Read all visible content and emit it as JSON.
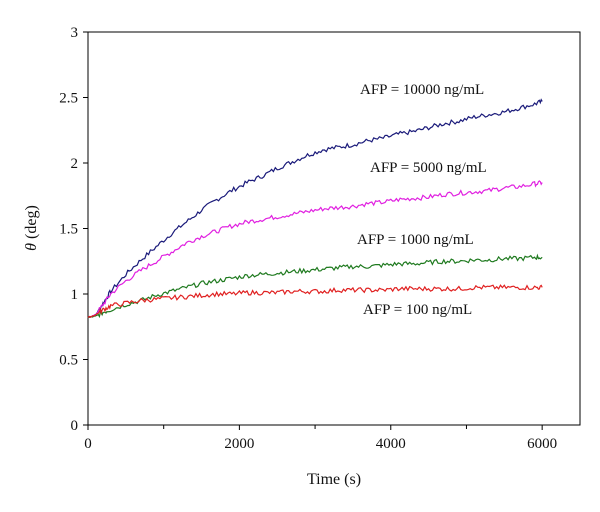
{
  "chart_data": {
    "type": "line",
    "xlabel": "Time (s)",
    "ylabel_symbol": "θ",
    "ylabel_unit": " (deg)",
    "xlim": [
      0,
      6500
    ],
    "ylim": [
      0,
      3
    ],
    "xticks": [
      0,
      2000,
      4000,
      6000
    ],
    "xtick_labels": [
      "0",
      "2000",
      "4000",
      "6000"
    ],
    "yticks": [
      0,
      0.5,
      1,
      1.5,
      2,
      2.5,
      3
    ],
    "ytick_labels": [
      "0",
      "0.5",
      "1",
      "1.5",
      "2",
      "2.5",
      "3"
    ],
    "grid": false,
    "legend": "none",
    "series": [
      {
        "name": "AFP = 10000 ng/mL",
        "color": "#1a1a7a",
        "x": [
          0,
          100,
          200,
          300,
          500,
          700,
          900,
          1100,
          1300,
          1500,
          1700,
          1900,
          2100,
          2300,
          2500,
          2700,
          2900,
          3100,
          3300,
          3500,
          3700,
          3900,
          4100,
          4300,
          4500,
          4700,
          4900,
          5100,
          5300,
          5500,
          5700,
          5900,
          6000
        ],
        "y": [
          0.82,
          0.84,
          0.93,
          1.02,
          1.15,
          1.26,
          1.36,
          1.46,
          1.55,
          1.64,
          1.72,
          1.79,
          1.85,
          1.9,
          1.96,
          2.01,
          2.06,
          2.1,
          2.12,
          2.14,
          2.17,
          2.19,
          2.22,
          2.24,
          2.27,
          2.3,
          2.32,
          2.35,
          2.37,
          2.39,
          2.42,
          2.45,
          2.47
        ]
      },
      {
        "name": "AFP = 5000 ng/mL",
        "color": "#e020e0",
        "x": [
          0,
          100,
          200,
          300,
          500,
          700,
          900,
          1100,
          1300,
          1500,
          1700,
          1900,
          2100,
          2300,
          2500,
          2700,
          2900,
          3100,
          3300,
          3500,
          3700,
          3900,
          4100,
          4300,
          4500,
          4700,
          4900,
          5100,
          5300,
          5500,
          5700,
          5900,
          6000
        ],
        "y": [
          0.82,
          0.84,
          0.92,
          1.0,
          1.1,
          1.18,
          1.25,
          1.32,
          1.39,
          1.44,
          1.48,
          1.52,
          1.55,
          1.57,
          1.59,
          1.61,
          1.63,
          1.65,
          1.66,
          1.67,
          1.69,
          1.7,
          1.72,
          1.73,
          1.74,
          1.76,
          1.77,
          1.78,
          1.79,
          1.81,
          1.82,
          1.84,
          1.85
        ]
      },
      {
        "name": "AFP = 1000 ng/mL",
        "color": "#1f7a1f",
        "x": [
          0,
          100,
          200,
          300,
          500,
          700,
          900,
          1100,
          1300,
          1500,
          1700,
          1900,
          2100,
          2300,
          2500,
          2700,
          2900,
          3100,
          3300,
          3500,
          3700,
          3900,
          4100,
          4300,
          4500,
          4700,
          4900,
          5100,
          5300,
          5500,
          5700,
          5900,
          6000
        ],
        "y": [
          0.82,
          0.83,
          0.86,
          0.88,
          0.92,
          0.95,
          0.99,
          1.02,
          1.05,
          1.08,
          1.1,
          1.12,
          1.14,
          1.15,
          1.16,
          1.17,
          1.18,
          1.19,
          1.2,
          1.21,
          1.21,
          1.22,
          1.23,
          1.23,
          1.24,
          1.25,
          1.25,
          1.26,
          1.26,
          1.27,
          1.27,
          1.28,
          1.28
        ]
      },
      {
        "name": "AFP = 100 ng/mL",
        "color": "#e02020",
        "x": [
          0,
          100,
          200,
          300,
          500,
          700,
          900,
          1100,
          1300,
          1500,
          1700,
          1900,
          2100,
          2300,
          2500,
          2700,
          2900,
          3100,
          3300,
          3500,
          3700,
          3900,
          4100,
          4300,
          4500,
          4700,
          4900,
          5100,
          5300,
          5500,
          5700,
          5900,
          6000
        ],
        "y": [
          0.82,
          0.84,
          0.88,
          0.91,
          0.93,
          0.95,
          0.96,
          0.97,
          0.98,
          0.99,
          1.0,
          1.0,
          1.01,
          1.01,
          1.01,
          1.02,
          1.02,
          1.02,
          1.03,
          1.03,
          1.03,
          1.03,
          1.04,
          1.04,
          1.04,
          1.04,
          1.04,
          1.05,
          1.05,
          1.05,
          1.05,
          1.05,
          1.05
        ]
      }
    ]
  }
}
